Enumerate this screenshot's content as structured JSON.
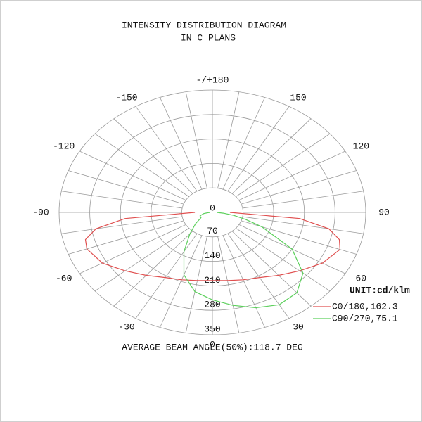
{
  "chart_data": {
    "type": "polar",
    "title": "INTENSITY DISTRIBUTION DIAGRAM",
    "subtitle": "IN C PLANS",
    "annotation": "AVERAGE BEAM ANGLE(50%):118.7 DEG",
    "legend_title": "UNIT:cd/klm",
    "theta": [
      -90,
      -85,
      -80,
      -75,
      -70,
      -60,
      -50,
      -40,
      -30,
      -20,
      -10,
      0,
      10,
      20,
      30,
      40,
      50,
      60,
      70,
      75,
      80,
      85,
      90
    ],
    "series": [
      {
        "name": "C0/180,162.3",
        "color": "#e05050",
        "values": [
          40,
          200,
          270,
          300,
          305,
          290,
          260,
          235,
          215,
          205,
          198,
          195,
          198,
          205,
          215,
          235,
          260,
          290,
          310,
          300,
          270,
          200,
          40
        ]
      },
      {
        "name": "C90/270,75.1",
        "color": "#5cd05c",
        "values": [
          5,
          10,
          20,
          25,
          30,
          30,
          50,
          80,
          130,
          190,
          230,
          250,
          270,
          290,
          305,
          300,
          270,
          210,
          120,
          80,
          50,
          25,
          10
        ]
      }
    ],
    "rlim": [
      0,
      350
    ],
    "rticks": [
      0,
      70,
      140,
      210,
      280,
      350
    ],
    "thetaticks": [
      0,
      30,
      60,
      90,
      120,
      150,
      {
        "value": 180,
        "label": "-/+180"
      },
      -150,
      -120,
      -90,
      -60,
      -30
    ]
  }
}
